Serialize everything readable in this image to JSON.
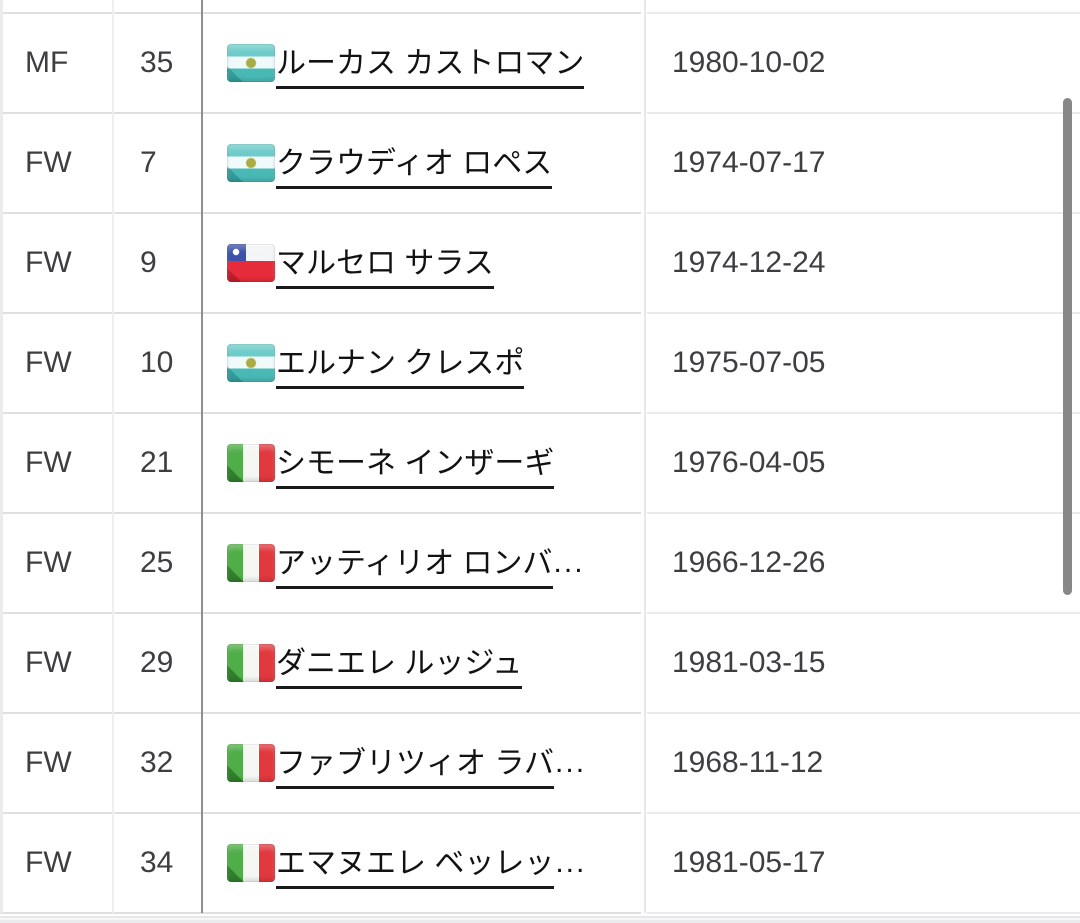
{
  "table": {
    "rows": [
      {
        "position": "MF",
        "number": "35",
        "flag": "argentina",
        "name": "ルーカス カストロマン",
        "ellipsis": "",
        "birthdate": "1980-10-02"
      },
      {
        "position": "FW",
        "number": "7",
        "flag": "argentina",
        "name": "クラウディオ ロペス",
        "ellipsis": "",
        "birthdate": "1974-07-17"
      },
      {
        "position": "FW",
        "number": "9",
        "flag": "chile",
        "name": "マルセロ サラス",
        "ellipsis": "",
        "birthdate": "1974-12-24"
      },
      {
        "position": "FW",
        "number": "10",
        "flag": "argentina",
        "name": "エルナン クレスポ",
        "ellipsis": "",
        "birthdate": "1975-07-05"
      },
      {
        "position": "FW",
        "number": "21",
        "flag": "italy",
        "name": "シモーネ インザーギ",
        "ellipsis": "",
        "birthdate": "1976-04-05"
      },
      {
        "position": "FW",
        "number": "25",
        "flag": "italy",
        "name": "アッティリオ ロンバ",
        "ellipsis": "...",
        "birthdate": "1966-12-26"
      },
      {
        "position": "FW",
        "number": "29",
        "flag": "italy",
        "name": "ダニエレ ルッジュ",
        "ellipsis": "",
        "birthdate": "1981-03-15"
      },
      {
        "position": "FW",
        "number": "32",
        "flag": "italy",
        "name": "ファブリツィオ ラバ",
        "ellipsis": "...",
        "birthdate": "1968-11-12"
      },
      {
        "position": "FW",
        "number": "34",
        "flag": "italy",
        "name": "エマヌエレ ベッレッ",
        "ellipsis": "...",
        "birthdate": "1981-05-17"
      }
    ]
  },
  "colors": {
    "row_border_left_pane": "#dfdfdf",
    "row_border_right_pane": "#eaeaec",
    "pane_divider": "#8f8f93",
    "link_underline": "#1a1a1a",
    "scrollbar_thumb": "#87878a",
    "flag_argentina_band": "#5fc3c0",
    "flag_chile_blue": "#3c51a8",
    "flag_chile_red": "#e62b3a",
    "flag_italy_green": "#4fae47",
    "flag_italy_red": "#e1383e"
  }
}
